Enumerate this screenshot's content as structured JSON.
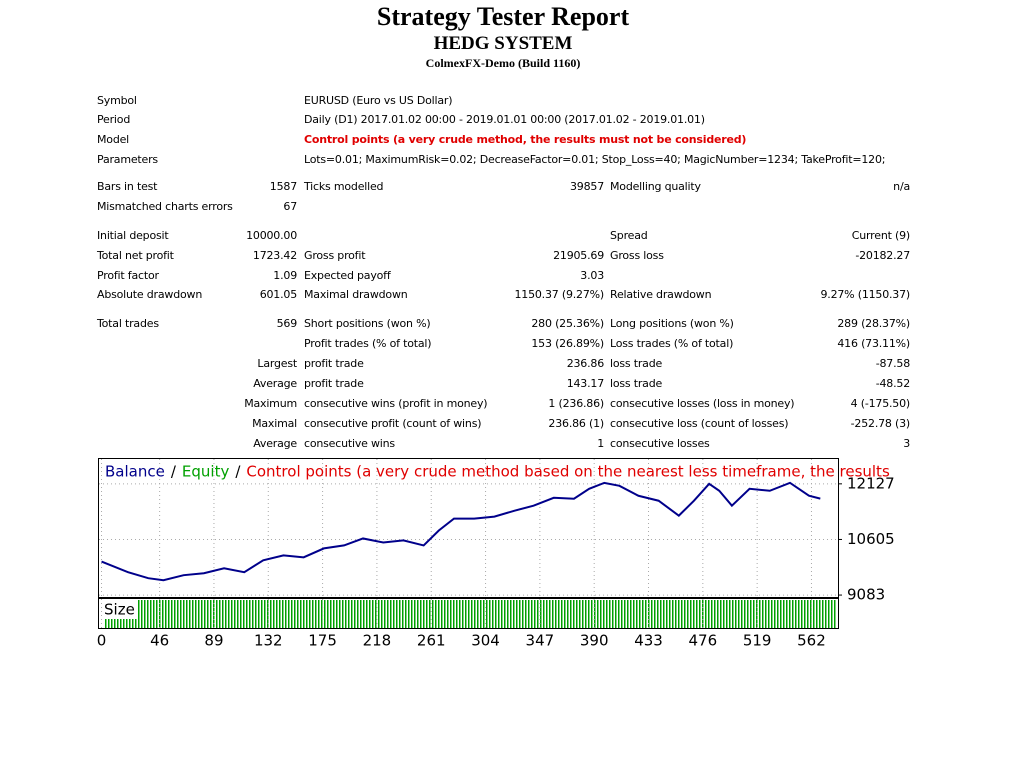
{
  "header": {
    "title": "Strategy Tester Report",
    "subtitle": "HEDG SYSTEM",
    "server": "ColmexFX-Demo (Build 1160)"
  },
  "info": [
    [
      "Symbol",
      "EURUSD (Euro vs US Dollar)"
    ],
    [
      "Period",
      "Daily (D1) 2017.01.02 00:00 - 2019.01.01 00:00 (2017.01.02 - 2019.01.01)"
    ],
    [
      "Model",
      "Control points (a very crude method, the results must not be considered)"
    ],
    [
      "Parameters",
      "Lots=0.01; MaximumRisk=0.02; DecreaseFactor=0.01; Stop_Loss=40; MagicNumber=1234; TakeProfit=120;"
    ]
  ],
  "stats": [
    [
      "Bars in test",
      "1587",
      "Ticks modelled",
      "39857",
      "Modelling quality",
      "n/a"
    ],
    [
      "Mismatched charts errors",
      "67",
      null,
      null,
      null,
      null
    ],
    [
      "Initial deposit",
      "10000.00",
      null,
      null,
      "Spread",
      "Current (9)"
    ],
    [
      "Total net profit",
      "1723.42",
      "Gross profit",
      "21905.69",
      "Gross loss",
      "-20182.27"
    ],
    [
      "Profit factor",
      "1.09",
      "Expected payoff",
      "3.03",
      null,
      null
    ],
    [
      "Absolute drawdown",
      "601.05",
      "Maximal drawdown",
      "1150.37 (9.27%)",
      "Relative drawdown",
      "9.27% (1150.37)"
    ],
    [
      "Total trades",
      "569",
      "Short positions (won %)",
      "280 (25.36%)",
      "Long positions (won %)",
      "289 (28.37%)"
    ],
    [
      null,
      null,
      "Profit trades (% of total)",
      "153 (26.89%)",
      "Loss trades (% of total)",
      "416 (73.11%)"
    ],
    [
      null,
      "Largest",
      "profit trade",
      "236.86",
      "loss trade",
      "-87.58"
    ],
    [
      null,
      "Average",
      "profit trade",
      "143.17",
      "loss trade",
      "-48.52"
    ],
    [
      null,
      "Maximum",
      "consecutive wins (profit in money)",
      "1 (236.86)",
      "consecutive losses (loss in money)",
      "4 (-175.50)"
    ],
    [
      null,
      "Maximal",
      "consecutive profit (count of wins)",
      "236.86 (1)",
      "consecutive loss (count of losses)",
      "-252.78 (3)"
    ],
    [
      null,
      "Average",
      "consecutive wins",
      "1",
      "consecutive losses",
      "3"
    ]
  ],
  "chart_data": {
    "type": "line",
    "separator": "/",
    "equity_label": "Equity",
    "equity_color": "#00a000",
    "note": "Control points (a very crude method based on the nearest less timeframe, the results",
    "note_color": "#e00000",
    "size_label": "Size",
    "x": [
      0,
      21,
      37,
      49,
      65,
      81,
      97,
      113,
      128,
      144,
      160,
      176,
      192,
      207,
      223,
      239,
      255,
      267,
      279,
      295,
      311,
      327,
      342,
      358,
      374,
      386,
      398,
      410,
      425,
      441,
      457,
      469,
      481,
      489,
      499,
      513,
      529,
      545,
      560,
      569
    ],
    "series": [
      {
        "name": "Balance",
        "color": "#00008b",
        "values": [
          10000,
          9708,
          9545,
          9490,
          9627,
          9681,
          9817,
          9708,
          10034,
          10170,
          10116,
          10360,
          10442,
          10632,
          10523,
          10578,
          10442,
          10850,
          11176,
          11176,
          11230,
          11393,
          11529,
          11746,
          11719,
          11991,
          12154,
          12073,
          11801,
          11665,
          11257,
          11665,
          12127,
          11937,
          11529,
          11991,
          11937,
          12154,
          11801,
          11723
        ]
      }
    ],
    "xlim": [
      -2,
      583
    ],
    "xticks": [
      0,
      46,
      89,
      132,
      175,
      218,
      261,
      304,
      347,
      390,
      433,
      476,
      519,
      562
    ],
    "ylim": [
      9030,
      12807
    ],
    "yticks": [
      9083,
      10605,
      12127
    ],
    "grid": true
  }
}
